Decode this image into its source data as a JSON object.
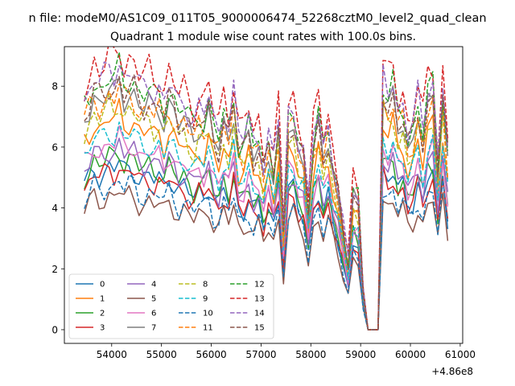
{
  "chart_data": {
    "type": "line",
    "suptitle": "n file: modeM0/AS1C09_011T05_9000006474_52268cztM0_level2_quad_clean",
    "title": "Quadrant 1 module wise count rates with 100.0s bins.",
    "xlabel": "",
    "ylabel": "",
    "x_offset_label": "+4.86e8",
    "xlim": [
      53050,
      61050
    ],
    "ylim": [
      -0.45,
      9.3
    ],
    "xticks": [
      54000,
      55000,
      56000,
      57000,
      58000,
      59000,
      60000,
      61000
    ],
    "yticks": [
      0,
      2,
      4,
      6,
      8
    ],
    "grid": false,
    "legend_position": "lower-left",
    "legend_columns": 4,
    "x_start": 53450,
    "x_step": 100,
    "n_points": 74,
    "series": [
      {
        "name": "0",
        "color": "#1f77b4",
        "dash": "solid",
        "base": 4.7,
        "amp": 0.9
      },
      {
        "name": "1",
        "color": "#ff7f0e",
        "dash": "solid",
        "base": 6.1,
        "amp": 1.0
      },
      {
        "name": "2",
        "color": "#2ca02c",
        "dash": "solid",
        "base": 5.0,
        "amp": 0.9
      },
      {
        "name": "3",
        "color": "#d62728",
        "dash": "solid",
        "base": 4.6,
        "amp": 0.9
      },
      {
        "name": "4",
        "color": "#9467bd",
        "dash": "solid",
        "base": 5.2,
        "amp": 0.9
      },
      {
        "name": "5",
        "color": "#8c564b",
        "dash": "solid",
        "base": 3.9,
        "amp": 0.8
      },
      {
        "name": "6",
        "color": "#e377c2",
        "dash": "solid",
        "base": 5.4,
        "amp": 0.9
      },
      {
        "name": "7",
        "color": "#7f7f7f",
        "dash": "solid",
        "base": 6.9,
        "amp": 1.0
      },
      {
        "name": "8",
        "color": "#bcbd22",
        "dash": "dashed",
        "base": 6.4,
        "amp": 1.0
      },
      {
        "name": "9",
        "color": "#17becf",
        "dash": "dashed",
        "base": 5.7,
        "amp": 1.0
      },
      {
        "name": "10",
        "color": "#1f77b4",
        "dash": "dashed",
        "base": 4.2,
        "amp": 0.9
      },
      {
        "name": "11",
        "color": "#ff7f0e",
        "dash": "dashed",
        "base": 6.8,
        "amp": 1.1
      },
      {
        "name": "12",
        "color": "#2ca02c",
        "dash": "dashed",
        "base": 7.3,
        "amp": 1.1
      },
      {
        "name": "13",
        "color": "#d62728",
        "dash": "dashed",
        "base": 7.9,
        "amp": 1.2
      },
      {
        "name": "14",
        "color": "#9467bd",
        "dash": "dashed",
        "base": 7.5,
        "amp": 1.1
      },
      {
        "name": "15",
        "color": "#8c564b",
        "dash": "dashed",
        "base": 7.0,
        "amp": 1.1
      }
    ],
    "shape": [
      1.0,
      1.05,
      1.12,
      1.08,
      1.1,
      1.14,
      1.12,
      1.18,
      1.1,
      1.13,
      1.12,
      1.06,
      1.05,
      1.08,
      1.04,
      1.06,
      1.0,
      1.08,
      1.03,
      0.97,
      1.0,
      0.96,
      0.92,
      0.98,
      0.95,
      1.02,
      0.9,
      0.86,
      0.98,
      0.9,
      1.05,
      0.85,
      0.84,
      0.92,
      0.82,
      0.86,
      0.73,
      0.85,
      0.74,
      0.93,
      0.44,
      0.95,
      0.97,
      0.84,
      0.8,
      0.55,
      0.85,
      0.96,
      0.8,
      0.9,
      0.74,
      0.62,
      0.45,
      0.3,
      0.62,
      0.58,
      0.18,
      0.0,
      0.0,
      0.0,
      1.1,
      1.04,
      1.1,
      0.96,
      1.0,
      0.86,
      0.9,
      1.02,
      0.88,
      1.06,
      1.1,
      0.75,
      1.08,
      0.8
    ]
  }
}
